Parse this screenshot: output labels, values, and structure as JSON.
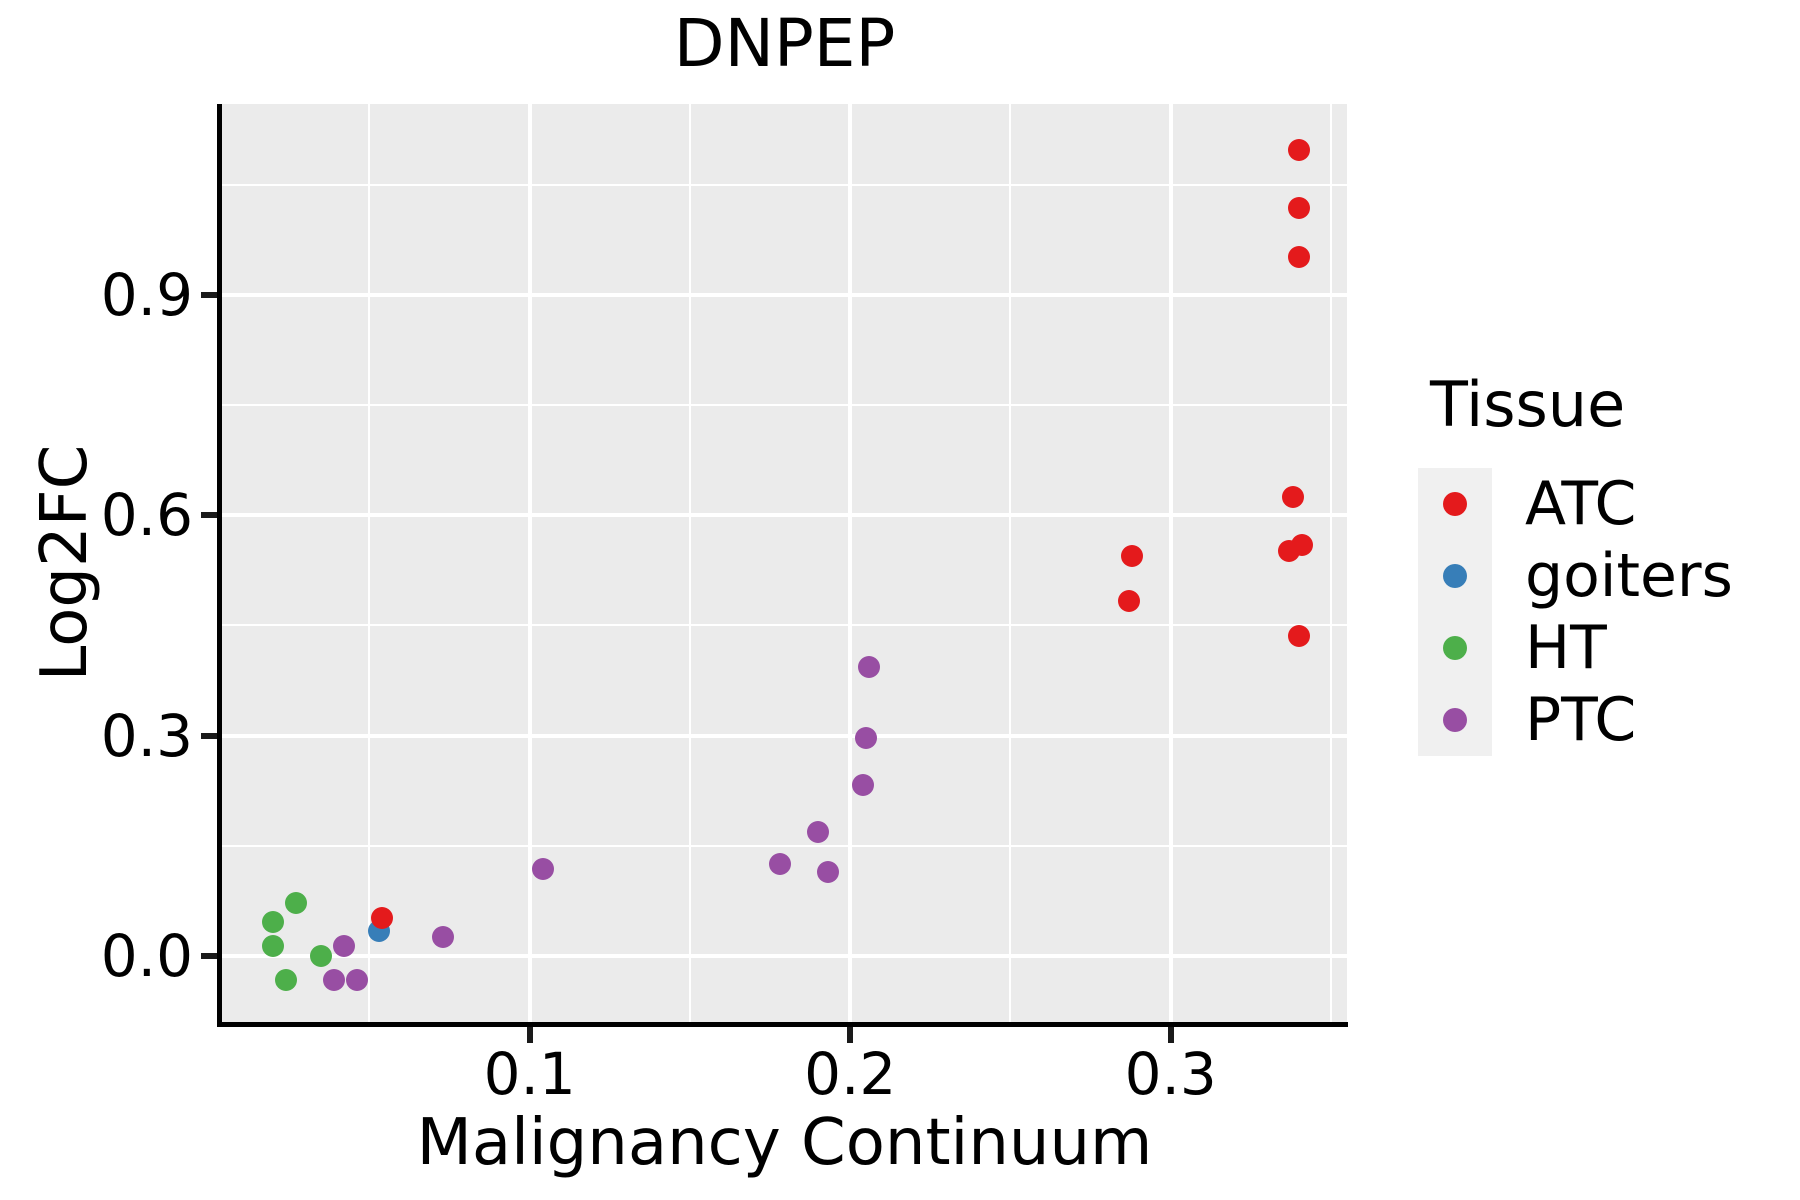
{
  "title": "DNPEP",
  "axes": {
    "x": {
      "label": "Malignancy Continuum",
      "tick_labels": [
        "0.1",
        "0.2",
        "0.3"
      ],
      "ticks": [
        0.1,
        0.2,
        0.3
      ],
      "minor_ticks": [
        0.05,
        0.15,
        0.25,
        0.35
      ],
      "range": [
        0.004,
        0.355
      ]
    },
    "y": {
      "label": "Log2FC",
      "tick_labels": [
        "0.0",
        "0.3",
        "0.6",
        "0.9"
      ],
      "ticks": [
        0.0,
        0.3,
        0.6,
        0.9
      ],
      "minor_ticks": [
        0.15,
        0.45,
        0.75,
        1.05
      ],
      "range": [
        -0.09,
        1.16
      ]
    }
  },
  "legend": {
    "title": "Tissue",
    "entries": [
      {
        "label": "ATC",
        "color": "#E41A1C"
      },
      {
        "label": "goiters",
        "color": "#377EB8"
      },
      {
        "label": "HT",
        "color": "#4DAF4A"
      },
      {
        "label": "PTC",
        "color": "#984EA3"
      }
    ]
  },
  "colors": {
    "panel_background": "#EBEBEB",
    "gridline": "#FFFFFF",
    "axis_line": "#000000",
    "legend_key_background": "#F0F0F0",
    "atc_red": "#E41A1C",
    "goiters_blue": "#377EB8",
    "ht_green": "#4DAF4A",
    "ptc_purple": "#984EA3"
  },
  "chart_data": {
    "type": "scatter",
    "title": "DNPEP",
    "xlabel": "Malignancy Continuum",
    "ylabel": "Log2FC",
    "xlim": [
      0.004,
      0.355
    ],
    "ylim": [
      -0.09,
      1.16
    ],
    "grid": "on",
    "legend_position": "right",
    "series": [
      {
        "name": "HT",
        "color": "#4DAF4A",
        "points": [
          [
            0.027,
            0.072
          ],
          [
            0.02,
            0.046
          ],
          [
            0.02,
            0.014
          ],
          [
            0.024,
            -0.033
          ],
          [
            0.035,
            0.0
          ]
        ]
      },
      {
        "name": "PTC",
        "color": "#984EA3",
        "points": [
          [
            0.042,
            0.014
          ],
          [
            0.039,
            -0.033
          ],
          [
            0.046,
            -0.033
          ],
          [
            0.073,
            0.026
          ],
          [
            0.104,
            0.118
          ],
          [
            0.178,
            0.125
          ],
          [
            0.193,
            0.114
          ],
          [
            0.19,
            0.169
          ],
          [
            0.204,
            0.233
          ],
          [
            0.205,
            0.297
          ],
          [
            0.206,
            0.393
          ]
        ]
      },
      {
        "name": "goiters",
        "color": "#377EB8",
        "points": [
          [
            0.053,
            0.034
          ]
        ]
      },
      {
        "name": "ATC",
        "color": "#E41A1C",
        "points": [
          [
            0.054,
            0.052
          ],
          [
            0.287,
            0.483
          ],
          [
            0.288,
            0.544
          ],
          [
            0.34,
            1.098
          ],
          [
            0.34,
            1.019
          ],
          [
            0.34,
            0.951
          ],
          [
            0.338,
            0.625
          ],
          [
            0.337,
            0.551
          ],
          [
            0.341,
            0.559
          ],
          [
            0.34,
            0.436
          ]
        ]
      }
    ]
  }
}
